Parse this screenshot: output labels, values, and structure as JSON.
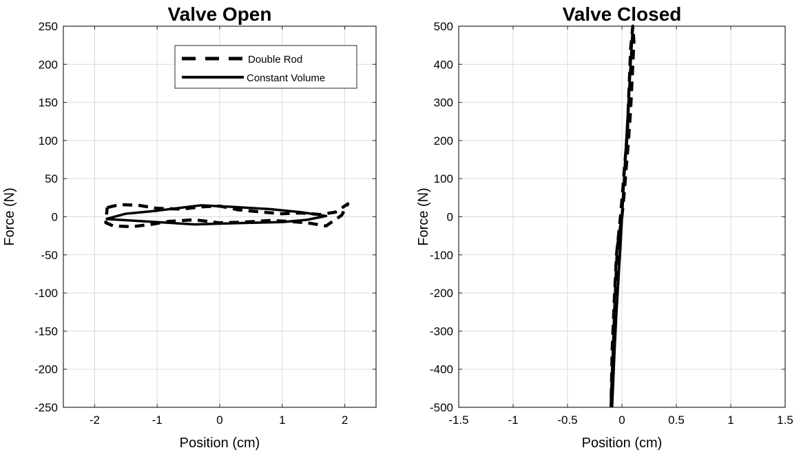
{
  "chart_data": [
    {
      "type": "line",
      "title": "Valve Open",
      "xlabel": "Position (cm)",
      "ylabel": "Force (N)",
      "xlim": [
        -2.5,
        2.5
      ],
      "ylim": [
        -250,
        250
      ],
      "xticks": [
        -2,
        -1,
        0,
        1,
        2
      ],
      "yticks": [
        -250,
        -200,
        -150,
        -100,
        -50,
        0,
        50,
        100,
        150,
        200,
        250
      ],
      "xtick_labels": [
        "-2",
        "-1",
        "0",
        "1",
        "2"
      ],
      "ytick_labels": [
        "-250",
        "-200",
        "-150",
        "-100",
        "-50",
        "0",
        "50",
        "100",
        "150",
        "200",
        "250"
      ],
      "grid": true,
      "legend": {
        "position": "top-right",
        "entries": [
          {
            "name": "Double Rod",
            "style": "dashed"
          },
          {
            "name": "Constant Volume",
            "style": "solid"
          }
        ]
      },
      "series": [
        {
          "name": "Double Rod",
          "style": "dashed",
          "x": [
            -1.8,
            -1.6,
            -1.3,
            -1.0,
            -0.6,
            -0.3,
            0.0,
            0.3,
            0.7,
            1.0,
            1.3,
            1.6,
            1.85,
            2.05,
            1.95,
            1.7,
            1.4,
            1.1,
            0.8,
            0.4,
            0.0,
            -0.4,
            -0.8,
            -1.1,
            -1.4,
            -1.7,
            -1.82,
            -1.8
          ],
          "y": [
            12,
            16,
            15,
            11,
            10,
            13,
            14,
            9,
            6,
            4,
            5,
            3,
            6,
            17,
            2,
            -12,
            -8,
            -6,
            -5,
            -7,
            -8,
            -4,
            -6,
            -10,
            -13,
            -12,
            -8,
            12
          ]
        },
        {
          "name": "Constant Volume",
          "style": "solid",
          "x": [
            -1.82,
            -0.4,
            0.0,
            0.5,
            1.0,
            1.4,
            1.7,
            1.3,
            0.8,
            0.2,
            -0.3,
            -1.0,
            -1.5,
            -1.82
          ],
          "y": [
            -3,
            -10,
            -9,
            -8,
            -7,
            -4,
            1,
            6,
            10,
            13,
            15,
            8,
            4,
            -3
          ]
        }
      ]
    },
    {
      "type": "line",
      "title": "Valve Closed",
      "xlabel": "Position (cm)",
      "ylabel": "Force (N)",
      "xlim": [
        -1.5,
        1.5
      ],
      "ylim": [
        -500,
        500
      ],
      "xticks": [
        -1.5,
        -1,
        -0.5,
        0,
        0.5,
        1,
        1.5
      ],
      "yticks": [
        -500,
        -400,
        -300,
        -200,
        -100,
        0,
        100,
        200,
        300,
        400,
        500
      ],
      "xtick_labels": [
        "-1.5",
        "-1",
        "-0.5",
        "0",
        "0.5",
        "1",
        "1.5"
      ],
      "ytick_labels": [
        "-500",
        "-400",
        "-300",
        "-200",
        "-100",
        "0",
        "100",
        "200",
        "300",
        "400",
        "500"
      ],
      "grid": true,
      "series": [
        {
          "name": "Double Rod",
          "style": "dashed",
          "x": [
            -0.1,
            -0.09,
            -0.08,
            -0.07,
            -0.06,
            -0.05,
            -0.04,
            -0.02,
            0.0,
            0.02,
            0.04,
            0.06,
            0.08,
            0.09,
            0.1,
            0.11,
            0.1,
            0.08,
            0.07,
            0.06,
            0.05,
            0.03,
            0.01,
            -0.01,
            -0.03,
            -0.05,
            -0.07,
            -0.09,
            -0.1
          ],
          "y": [
            -500,
            -420,
            -350,
            -270,
            -200,
            -130,
            -75,
            -40,
            0,
            60,
            130,
            200,
            280,
            340,
            400,
            460,
            500,
            440,
            370,
            300,
            220,
            150,
            80,
            10,
            -45,
            -100,
            -220,
            -350,
            -500
          ]
        },
        {
          "name": "Constant Volume",
          "style": "solid",
          "x": [
            -0.09,
            -0.06,
            -0.02,
            0.02,
            0.06,
            0.08,
            0.1,
            0.07,
            0.03,
            -0.01,
            -0.05,
            -0.08,
            -0.09
          ],
          "y": [
            -500,
            -300,
            -100,
            100,
            300,
            400,
            500,
            350,
            150,
            -60,
            -250,
            -420,
            -500
          ]
        }
      ]
    }
  ]
}
